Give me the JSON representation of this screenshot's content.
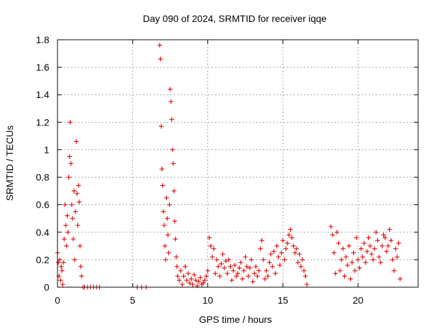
{
  "chart_data": {
    "type": "scatter",
    "title": "Day 090 of 2024, SRMTID for receiver iqqe",
    "xlabel": "GPS time / hours",
    "ylabel": "SRMTID / TECUs",
    "xlim": [
      0,
      24
    ],
    "ylim": [
      0,
      1.8
    ],
    "xticks": [
      0,
      5,
      10,
      15,
      20
    ],
    "xtick_labels": [
      "0",
      "5",
      "10",
      "15",
      "20"
    ],
    "yticks": [
      0,
      0.2,
      0.4,
      0.6,
      0.8,
      1.0,
      1.2,
      1.4,
      1.6,
      1.8
    ],
    "ytick_labels": [
      "0",
      "0.2",
      "0.4",
      "0.6",
      "0.8",
      "1",
      "1.2",
      "1.4",
      "1.6",
      "1.8"
    ],
    "grid": true,
    "marker": "+",
    "color": "#e00000",
    "series": [
      {
        "name": "SRMTID",
        "x": [
          0.0,
          0.05,
          0.1,
          0.15,
          0.2,
          0.25,
          0.3,
          0.35,
          0.4,
          0.45,
          0.5,
          0.55,
          0.6,
          0.65,
          0.7,
          0.75,
          0.8,
          0.85,
          0.9,
          0.95,
          1.0,
          1.05,
          1.1,
          1.15,
          1.2,
          1.25,
          1.3,
          1.35,
          1.4,
          1.45,
          1.5,
          1.55,
          1.6,
          1.7,
          1.8,
          2.0,
          2.2,
          2.4,
          2.6,
          2.8,
          5.3,
          5.6,
          5.9,
          6.8,
          6.85,
          6.9,
          6.95,
          7.0,
          7.05,
          7.1,
          7.15,
          7.2,
          7.25,
          7.3,
          7.35,
          7.4,
          7.45,
          7.5,
          7.55,
          7.6,
          7.65,
          7.7,
          7.75,
          7.8,
          7.85,
          7.9,
          7.95,
          8.0,
          8.1,
          8.2,
          8.3,
          8.4,
          8.5,
          8.6,
          8.7,
          8.8,
          8.9,
          9.0,
          9.1,
          9.2,
          9.3,
          9.4,
          9.5,
          9.6,
          9.7,
          9.8,
          9.9,
          10.0,
          10.1,
          10.2,
          10.3,
          10.4,
          10.5,
          10.6,
          10.7,
          10.8,
          10.9,
          11.0,
          11.1,
          11.2,
          11.3,
          11.4,
          11.5,
          11.6,
          11.7,
          11.8,
          11.9,
          12.0,
          12.1,
          12.2,
          12.3,
          12.4,
          12.5,
          12.6,
          12.7,
          12.8,
          12.9,
          13.0,
          13.1,
          13.2,
          13.3,
          13.4,
          13.5,
          13.6,
          13.7,
          13.8,
          13.9,
          14.0,
          14.1,
          14.2,
          14.3,
          14.4,
          14.5,
          14.6,
          14.7,
          14.8,
          14.9,
          15.0,
          15.1,
          15.2,
          15.3,
          15.4,
          15.5,
          15.6,
          15.7,
          15.8,
          15.9,
          16.0,
          16.1,
          16.2,
          16.3,
          16.4,
          16.5,
          16.6,
          18.2,
          18.3,
          18.4,
          18.5,
          18.6,
          18.7,
          18.8,
          18.9,
          19.0,
          19.1,
          19.2,
          19.3,
          19.4,
          19.5,
          19.6,
          19.7,
          19.8,
          19.9,
          20.0,
          20.1,
          20.2,
          20.3,
          20.4,
          20.5,
          20.6,
          20.7,
          20.8,
          20.9,
          21.0,
          21.1,
          21.2,
          21.3,
          21.4,
          21.5,
          21.6,
          21.7,
          21.8,
          21.9,
          22.0,
          22.1,
          22.2,
          22.3,
          22.4,
          22.5,
          22.6,
          22.7,
          22.8
        ],
        "y": [
          0.25,
          0.18,
          0.08,
          0.2,
          0.05,
          0.15,
          0.12,
          0.02,
          0.18,
          0.35,
          0.6,
          0.45,
          0.3,
          0.52,
          0.4,
          0.8,
          0.95,
          1.2,
          0.9,
          0.6,
          0.5,
          0.35,
          0.7,
          0.2,
          0.55,
          1.06,
          0.68,
          0.45,
          0.74,
          0.62,
          0.3,
          0.15,
          0.08,
          0.0,
          0.0,
          0.0,
          0.0,
          0.0,
          0.0,
          0.0,
          0.0,
          0.0,
          0.0,
          1.76,
          1.66,
          1.17,
          0.86,
          0.74,
          0.55,
          0.45,
          0.3,
          0.2,
          0.65,
          0.5,
          0.38,
          0.25,
          0.6,
          1.44,
          1.35,
          1.22,
          1.0,
          0.9,
          0.7,
          0.48,
          0.35,
          0.22,
          0.15,
          0.08,
          0.05,
          0.12,
          0.02,
          0.08,
          0.15,
          0.05,
          0.1,
          0.03,
          0.06,
          0.02,
          0.09,
          0.05,
          0.01,
          0.04,
          0.07,
          0.02,
          0.03,
          0.05,
          0.08,
          0.12,
          0.36,
          0.3,
          0.22,
          0.28,
          0.1,
          0.2,
          0.15,
          0.08,
          0.17,
          0.24,
          0.14,
          0.19,
          0.1,
          0.2,
          0.15,
          0.05,
          0.12,
          0.16,
          0.08,
          0.1,
          0.14,
          0.18,
          0.06,
          0.12,
          0.22,
          0.15,
          0.08,
          0.14,
          0.2,
          0.04,
          0.1,
          0.15,
          0.08,
          0.12,
          0.28,
          0.34,
          0.2,
          0.06,
          0.12,
          0.08,
          0.18,
          0.24,
          0.15,
          0.26,
          0.1,
          0.3,
          0.22,
          0.16,
          0.25,
          0.34,
          0.2,
          0.28,
          0.32,
          0.38,
          0.42,
          0.36,
          0.3,
          0.25,
          0.28,
          0.18,
          0.24,
          0.15,
          0.2,
          0.12,
          0.08,
          0.02,
          0.44,
          0.38,
          0.25,
          0.1,
          0.4,
          0.32,
          0.12,
          0.2,
          0.28,
          0.08,
          0.22,
          0.16,
          0.3,
          0.06,
          0.18,
          0.25,
          0.12,
          0.36,
          0.2,
          0.14,
          0.28,
          0.22,
          0.32,
          0.18,
          0.26,
          0.36,
          0.3,
          0.24,
          0.2,
          0.28,
          0.4,
          0.34,
          0.22,
          0.18,
          0.3,
          0.38,
          0.36,
          0.26,
          0.3,
          0.42,
          0.34,
          0.2,
          0.12,
          0.28,
          0.22,
          0.32,
          0.06
        ]
      }
    ]
  }
}
